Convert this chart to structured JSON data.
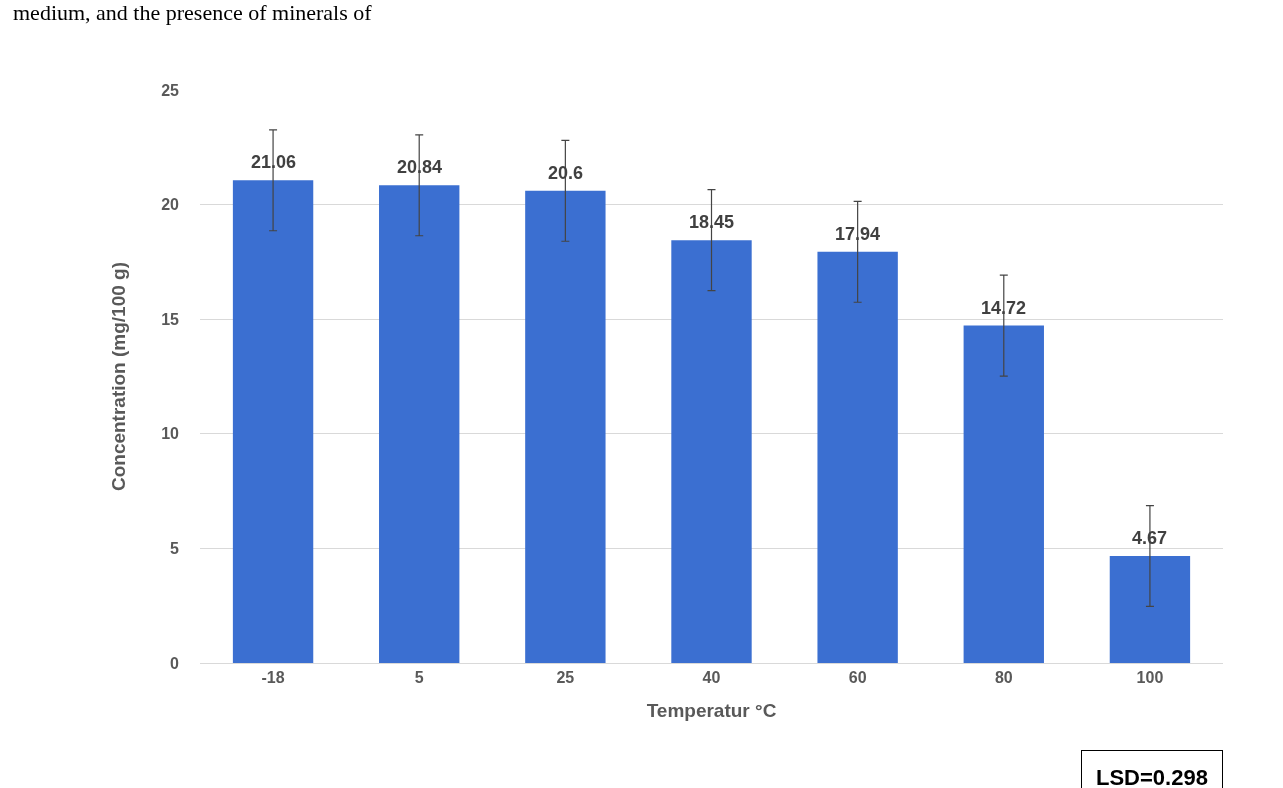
{
  "chart_data": {
    "type": "bar",
    "xlabel": "Temperatur °C",
    "ylabel": "Concentration (mg/100 g)",
    "categories": [
      "-18",
      "5",
      "25",
      "40",
      "60",
      "80",
      "100"
    ],
    "values": [
      21.06,
      20.84,
      20.6,
      18.45,
      17.94,
      14.72,
      4.67
    ],
    "errors": [
      2.2,
      2.2,
      2.2,
      2.2,
      2.2,
      2.2,
      2.2
    ],
    "color": "#3b6fd1",
    "data_labels": true,
    "ylim": [
      0,
      25
    ],
    "yticks": [
      0,
      5,
      10,
      15,
      20,
      25
    ],
    "grid": "y",
    "annotations": [
      "medium, and the presence of minerals of",
      "LSD=0.298"
    ]
  }
}
